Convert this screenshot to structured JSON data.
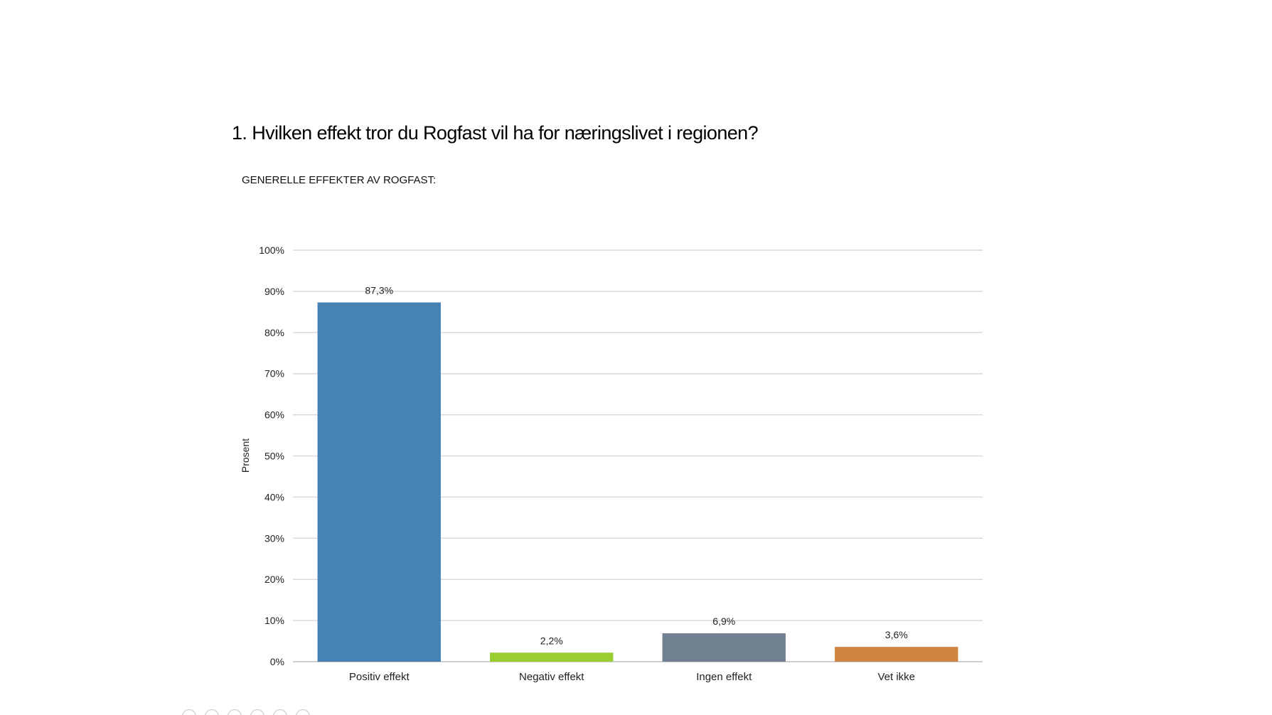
{
  "slide": {
    "title": "1. Hvilken effekt tror du Rogfast vil ha for næringslivet i regionen?",
    "subtitle": "GENERELLE EFFEKTER AV ROGFAST:"
  },
  "nav_icons": [
    "slide-prev-icon",
    "slide-back-icon",
    "slide-pen-icon",
    "slide-menu-icon",
    "slide-zoom-icon",
    "slide-more-icon"
  ],
  "chart_data": {
    "type": "bar",
    "title": "",
    "xlabel": "",
    "ylabel": "Prosent",
    "categories": [
      "Positiv effekt",
      "Negativ effekt",
      "Ingen effekt",
      "Vet ikke"
    ],
    "values": [
      87.3,
      2.2,
      6.9,
      3.6
    ],
    "data_labels": [
      "87,3%",
      "2,2%",
      "6,9%",
      "3,6%"
    ],
    "colors": [
      "#4682b4",
      "#9acd32",
      "#708090",
      "#cd853f"
    ],
    "ylim": [
      0,
      100
    ],
    "yticks": [
      0,
      10,
      20,
      30,
      40,
      50,
      60,
      70,
      80,
      90,
      100
    ],
    "ytick_labels": [
      "0%",
      "10%",
      "20%",
      "30%",
      "40%",
      "50%",
      "60%",
      "70%",
      "80%",
      "90%",
      "100%"
    ],
    "grid": true,
    "gridline_color": "#d9d9d9",
    "legend": "none"
  }
}
